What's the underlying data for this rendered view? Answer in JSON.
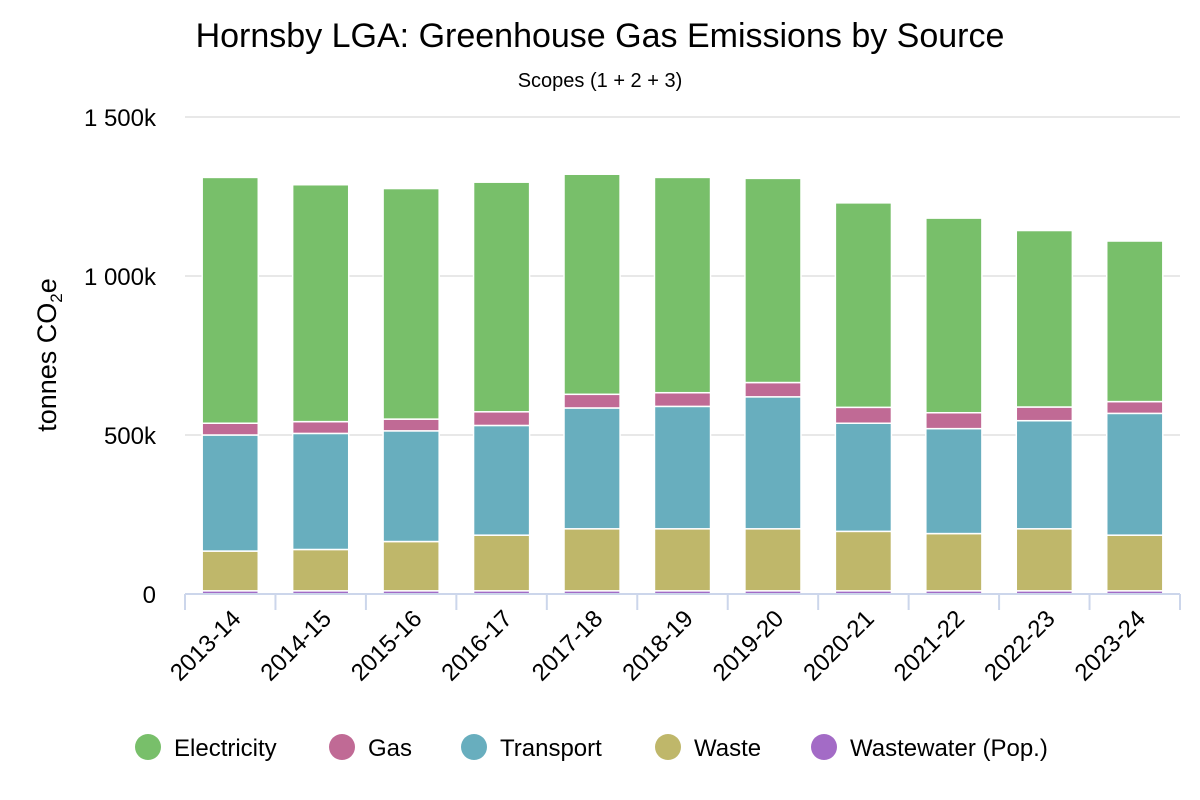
{
  "chart_data": {
    "type": "bar",
    "stacked": true,
    "title": "Hornsby LGA: Greenhouse Gas Emissions by Source",
    "subtitle": "Scopes (1 + 2 + 3)",
    "ylabel_main": "tonnes CO",
    "ylabel_sub": "2",
    "ylabel_suffix": "e",
    "xlabel": "",
    "ylim": [
      0,
      1500000
    ],
    "yticks": [
      0,
      500000,
      1000000,
      1500000
    ],
    "ytick_labels": [
      "0",
      "500k",
      "1 000k",
      "1 500k"
    ],
    "grid": true,
    "legend_position": "bottom",
    "categories": [
      "2013-14",
      "2014-15",
      "2015-16",
      "2016-17",
      "2017-18",
      "2018-19",
      "2019-20",
      "2020-21",
      "2021-22",
      "2022-23",
      "2023-24"
    ],
    "series": [
      {
        "name": "Wastewater (Pop.)",
        "color": "#a36bc6",
        "values": [
          10000,
          10000,
          10000,
          10000,
          10000,
          10000,
          10000,
          10000,
          10000,
          10000,
          10000
        ]
      },
      {
        "name": "Waste",
        "color": "#bfb76a",
        "values": [
          125000,
          130000,
          155000,
          175000,
          195000,
          195000,
          195000,
          187000,
          180000,
          195000,
          175000
        ]
      },
      {
        "name": "Transport",
        "color": "#68aebe",
        "values": [
          365000,
          365000,
          348000,
          345000,
          380000,
          385000,
          415000,
          340000,
          330000,
          340000,
          383000
        ]
      },
      {
        "name": "Gas",
        "color": "#c06a95",
        "values": [
          37000,
          37000,
          37000,
          43000,
          43000,
          43000,
          45000,
          50000,
          50000,
          43000,
          37000
        ]
      },
      {
        "name": "Electricity",
        "color": "#78bf6a",
        "values": [
          773000,
          745000,
          725000,
          722000,
          692000,
          677000,
          642000,
          643000,
          612000,
          555000,
          505000
        ]
      }
    ],
    "legend_order": [
      "Electricity",
      "Gas",
      "Transport",
      "Waste",
      "Wastewater (Pop.)"
    ]
  }
}
